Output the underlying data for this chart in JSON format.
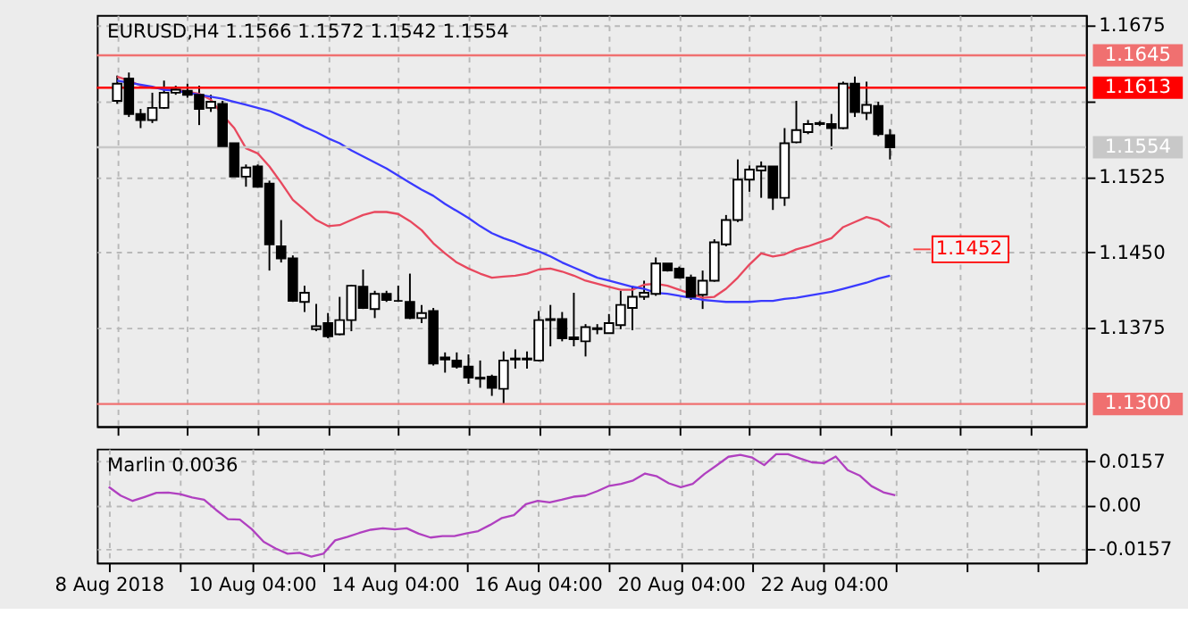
{
  "chart_data": [
    {
      "type": "candlestick",
      "title": "EURUSD,H4  1.1566 1.1572 1.1542 1.1554",
      "categories": [
        null,
        null,
        null,
        null,
        null,
        null,
        null,
        null,
        null,
        null,
        null,
        null,
        null,
        null,
        null,
        null,
        null,
        null,
        null,
        null,
        null,
        null,
        null,
        null,
        null,
        null,
        null,
        null,
        null,
        null,
        null,
        null,
        null,
        null,
        null,
        null,
        null,
        null,
        null,
        null,
        null,
        null,
        null,
        null,
        null,
        null,
        null,
        null,
        null,
        null,
        null,
        null,
        null,
        null,
        null,
        null,
        null,
        null,
        null,
        null,
        null,
        null,
        null,
        null,
        null,
        null,
        null
      ],
      "ohlc": [
        [
          1.16,
          1.1625,
          1.1597,
          1.1617
        ],
        [
          1.1622,
          1.1628,
          1.1584,
          1.1587
        ],
        [
          1.1587,
          1.1592,
          1.1573,
          1.1581
        ],
        [
          1.1581,
          1.1608,
          1.1578,
          1.1593
        ],
        [
          1.1593,
          1.162,
          1.1592,
          1.1608
        ],
        [
          1.1608,
          1.1615,
          1.1606,
          1.1611
        ],
        [
          1.161,
          1.1617,
          1.1603,
          1.1606
        ],
        [
          1.1606,
          1.1615,
          1.1576,
          1.1592
        ],
        [
          1.1593,
          1.1606,
          1.1589,
          1.1599
        ],
        [
          1.1597,
          1.16,
          1.1554,
          1.1555
        ],
        [
          1.1558,
          1.1558,
          1.1525,
          1.1525
        ],
        [
          1.1525,
          1.1537,
          1.1515,
          1.1534
        ],
        [
          1.1535,
          1.1537,
          1.1514,
          1.1515
        ],
        [
          1.1518,
          1.1521,
          1.1432,
          1.1458
        ],
        [
          1.1456,
          1.1482,
          1.144,
          1.1444
        ],
        [
          1.1444,
          1.1447,
          1.1401,
          1.1402
        ],
        [
          1.1401,
          1.1417,
          1.1391,
          1.141
        ],
        [
          1.1374,
          1.1399,
          1.1372,
          1.1377
        ],
        [
          1.138,
          1.139,
          1.1365,
          1.1367
        ],
        [
          1.1369,
          1.1406,
          1.1368,
          1.1383
        ],
        [
          1.1383,
          1.1418,
          1.1372,
          1.1417
        ],
        [
          1.1416,
          1.1433,
          1.1394,
          1.1395
        ],
        [
          1.1394,
          1.1412,
          1.1385,
          1.1409
        ],
        [
          1.1409,
          1.1412,
          1.1401,
          1.1403
        ],
        [
          1.1402,
          1.1417,
          1.1401,
          1.1402
        ],
        [
          1.1401,
          1.1429,
          1.1384,
          1.1385
        ],
        [
          1.1385,
          1.1398,
          1.138,
          1.139
        ],
        [
          1.1392,
          1.1395,
          1.1338,
          1.134
        ],
        [
          1.1346,
          1.1351,
          1.1331,
          1.1344
        ],
        [
          1.1343,
          1.1351,
          1.1335,
          1.1337
        ],
        [
          1.1337,
          1.1349,
          1.132,
          1.1326
        ],
        [
          1.1326,
          1.1343,
          1.1316,
          1.1325
        ],
        [
          1.1327,
          1.1329,
          1.1308,
          1.1316
        ],
        [
          1.1315,
          1.1352,
          1.13,
          1.1343
        ],
        [
          1.1344,
          1.1354,
          1.1335,
          1.1345
        ],
        [
          1.1345,
          1.1352,
          1.1335,
          1.1344
        ],
        [
          1.1343,
          1.1392,
          1.1342,
          1.1383
        ],
        [
          1.1383,
          1.1398,
          1.1357,
          1.1384
        ],
        [
          1.1384,
          1.1391,
          1.1362,
          1.1365
        ],
        [
          1.1366,
          1.141,
          1.1357,
          1.1364
        ],
        [
          1.1362,
          1.1379,
          1.1347,
          1.1376
        ],
        [
          1.1374,
          1.1379,
          1.1369,
          1.1375
        ],
        [
          1.137,
          1.1389,
          1.137,
          1.138
        ],
        [
          1.1378,
          1.1412,
          1.1374,
          1.1398
        ],
        [
          1.1395,
          1.1417,
          1.1373,
          1.1406
        ],
        [
          1.1406,
          1.1422,
          1.1403,
          1.141
        ],
        [
          1.1409,
          1.1445,
          1.1407,
          1.1439
        ],
        [
          1.1439,
          1.1439,
          1.1431,
          1.1432
        ],
        [
          1.1434,
          1.1436,
          1.1424,
          1.1425
        ],
        [
          1.1425,
          1.1428,
          1.1403,
          1.1406
        ],
        [
          1.1408,
          1.1432,
          1.1394,
          1.1422
        ],
        [
          1.1422,
          1.1463,
          1.1421,
          1.146
        ],
        [
          1.1458,
          1.1487,
          1.1456,
          1.1482
        ],
        [
          1.1482,
          1.1542,
          1.148,
          1.1522
        ],
        [
          1.1522,
          1.1536,
          1.151,
          1.1532
        ],
        [
          1.1531,
          1.154,
          1.1504,
          1.1535
        ],
        [
          1.1535,
          1.1535,
          1.1492,
          1.1504
        ],
        [
          1.1504,
          1.1573,
          1.1496,
          1.1558
        ],
        [
          1.1559,
          1.16,
          1.1558,
          1.1571
        ],
        [
          1.1569,
          1.1581,
          1.1567,
          1.1577
        ],
        [
          1.1577,
          1.158,
          1.1575,
          1.1578
        ],
        [
          1.1577,
          1.1587,
          1.1552,
          1.1573
        ],
        [
          1.1573,
          1.1619,
          1.1572,
          1.1617
        ],
        [
          1.1617,
          1.1624,
          1.1584,
          1.1589
        ],
        [
          1.1588,
          1.1619,
          1.1581,
          1.1596
        ],
        [
          1.1595,
          1.1599,
          1.1565,
          1.1567
        ],
        [
          1.1566,
          1.1572,
          1.1542,
          1.1554
        ]
      ],
      "series": [
        {
          "type": "line",
          "color": "#e8485e",
          "values": [
            1.1624,
            1.162,
            1.1615,
            1.1613,
            1.1612,
            1.1611,
            1.1609,
            1.1607,
            1.1601,
            1.1586,
            1.1573,
            1.1553,
            1.1548,
            1.1535,
            1.1519,
            1.1502,
            1.1492,
            1.1482,
            1.1476,
            1.1477,
            1.1482,
            1.1487,
            1.149,
            1.149,
            1.1488,
            1.1481,
            1.1472,
            1.1459,
            1.1449,
            1.144,
            1.1434,
            1.1429,
            1.1425,
            1.1426,
            1.1427,
            1.1429,
            1.1433,
            1.1434,
            1.1431,
            1.1427,
            1.1422,
            1.1419,
            1.1416,
            1.1413,
            1.1413,
            1.1418,
            1.1419,
            1.1417,
            1.1413,
            1.1409,
            1.1405,
            1.1406,
            1.1414,
            1.1425,
            1.1438,
            1.1449,
            1.1446,
            1.1448,
            1.1453,
            1.1456,
            1.146,
            1.1464,
            1.1475,
            1.148,
            1.1485,
            1.1482,
            1.1475
          ]
        },
        {
          "type": "line",
          "color": "#3a3aff",
          "values": [
            1.162,
            1.1618,
            1.1616,
            1.1614,
            1.1611,
            1.161,
            1.1608,
            1.1606,
            1.1604,
            1.1602,
            1.1599,
            1.1596,
            1.1593,
            1.159,
            1.1585,
            1.158,
            1.1574,
            1.1569,
            1.1563,
            1.1558,
            1.1551,
            1.1545,
            1.1539,
            1.1533,
            1.1526,
            1.1519,
            1.1512,
            1.1506,
            1.1498,
            1.1491,
            1.1484,
            1.1476,
            1.1469,
            1.1464,
            1.146,
            1.1455,
            1.1451,
            1.1446,
            1.144,
            1.1435,
            1.143,
            1.1425,
            1.1422,
            1.1419,
            1.1416,
            1.1414,
            1.141,
            1.1409,
            1.1407,
            1.1405,
            1.1403,
            1.1402,
            1.1401,
            1.1401,
            1.1401,
            1.1402,
            1.1402,
            1.1404,
            1.1405,
            1.1407,
            1.1409,
            1.1411,
            1.1414,
            1.1417,
            1.142,
            1.1424,
            1.1427
          ]
        }
      ],
      "ref_lines": [
        {
          "axis": "y",
          "value": 1.1645,
          "label": "1.1645",
          "color": "#f07070"
        },
        {
          "axis": "y",
          "value": 1.1613,
          "label": "1.1613",
          "color": "#ff0000"
        },
        {
          "axis": "y",
          "value": 1.1554,
          "label": "1.1554",
          "color": "#c8c8c8"
        },
        {
          "axis": "y",
          "value": 1.13,
          "label": "1.1300",
          "color": "#f07070"
        }
      ],
      "annotations": [
        "1.1452"
      ],
      "ylim": [
        1.1278,
        1.1685
      ],
      "yticks": [
        1.1675,
        {
          "value": 1.16,
          "label": null
        },
        1.1525,
        {
          "value": 1.145,
          "label": "1.1450"
        },
        1.1375
      ],
      "tick_labels": "y",
      "grid": true
    },
    {
      "type": "line",
      "title": "Marlin 0.0036",
      "categories": [
        "8 Aug 2018",
        null,
        null,
        null,
        null,
        null,
        null,
        null,
        null,
        null,
        null,
        null,
        "10 Aug 04:00",
        null,
        null,
        null,
        null,
        null,
        null,
        null,
        null,
        null,
        null,
        null,
        "14 Aug 04:00",
        null,
        null,
        null,
        null,
        null,
        null,
        null,
        null,
        null,
        null,
        null,
        "16 Aug 04:00",
        null,
        null,
        null,
        null,
        null,
        null,
        null,
        null,
        null,
        null,
        null,
        "20 Aug 04:00",
        null,
        null,
        null,
        null,
        null,
        null,
        null,
        null,
        null,
        null,
        null,
        "22 Aug 04:00",
        null,
        null,
        null,
        null,
        null,
        null
      ],
      "series": [
        {
          "type": "line",
          "color": "#b040c0",
          "values": [
            0.0066,
            0.0035,
            0.0016,
            0.003,
            0.0045,
            0.0046,
            0.004,
            0.0028,
            0.002,
            -0.0016,
            -0.0049,
            -0.0051,
            -0.0085,
            -0.013,
            -0.0154,
            -0.0173,
            -0.017,
            -0.0183,
            -0.0173,
            -0.0125,
            -0.0113,
            -0.0099,
            -0.0087,
            -0.0082,
            -0.0086,
            -0.0082,
            -0.0101,
            -0.0115,
            -0.011,
            -0.011,
            -0.01,
            -0.0092,
            -0.007,
            -0.0045,
            -0.0035,
            0.0004,
            0.0016,
            0.0011,
            0.002,
            0.0031,
            0.0035,
            0.0051,
            0.007,
            0.0077,
            0.0089,
            0.0114,
            0.0104,
            0.0079,
            0.0065,
            0.0077,
            0.0113,
            0.0143,
            0.0174,
            0.0181,
            0.0171,
            0.0144,
            0.0183,
            0.0183,
            0.0168,
            0.0154,
            0.0151,
            0.0175,
            0.0126,
            0.0107,
            0.0069,
            0.0047,
            0.0036
          ]
        }
      ],
      "ylim": [
        -0.0205,
        0.0203
      ],
      "yticks": [
        0.0157,
        {
          "value": 0,
          "label": "0.00"
        },
        -0.0157
      ],
      "grid": true
    }
  ]
}
